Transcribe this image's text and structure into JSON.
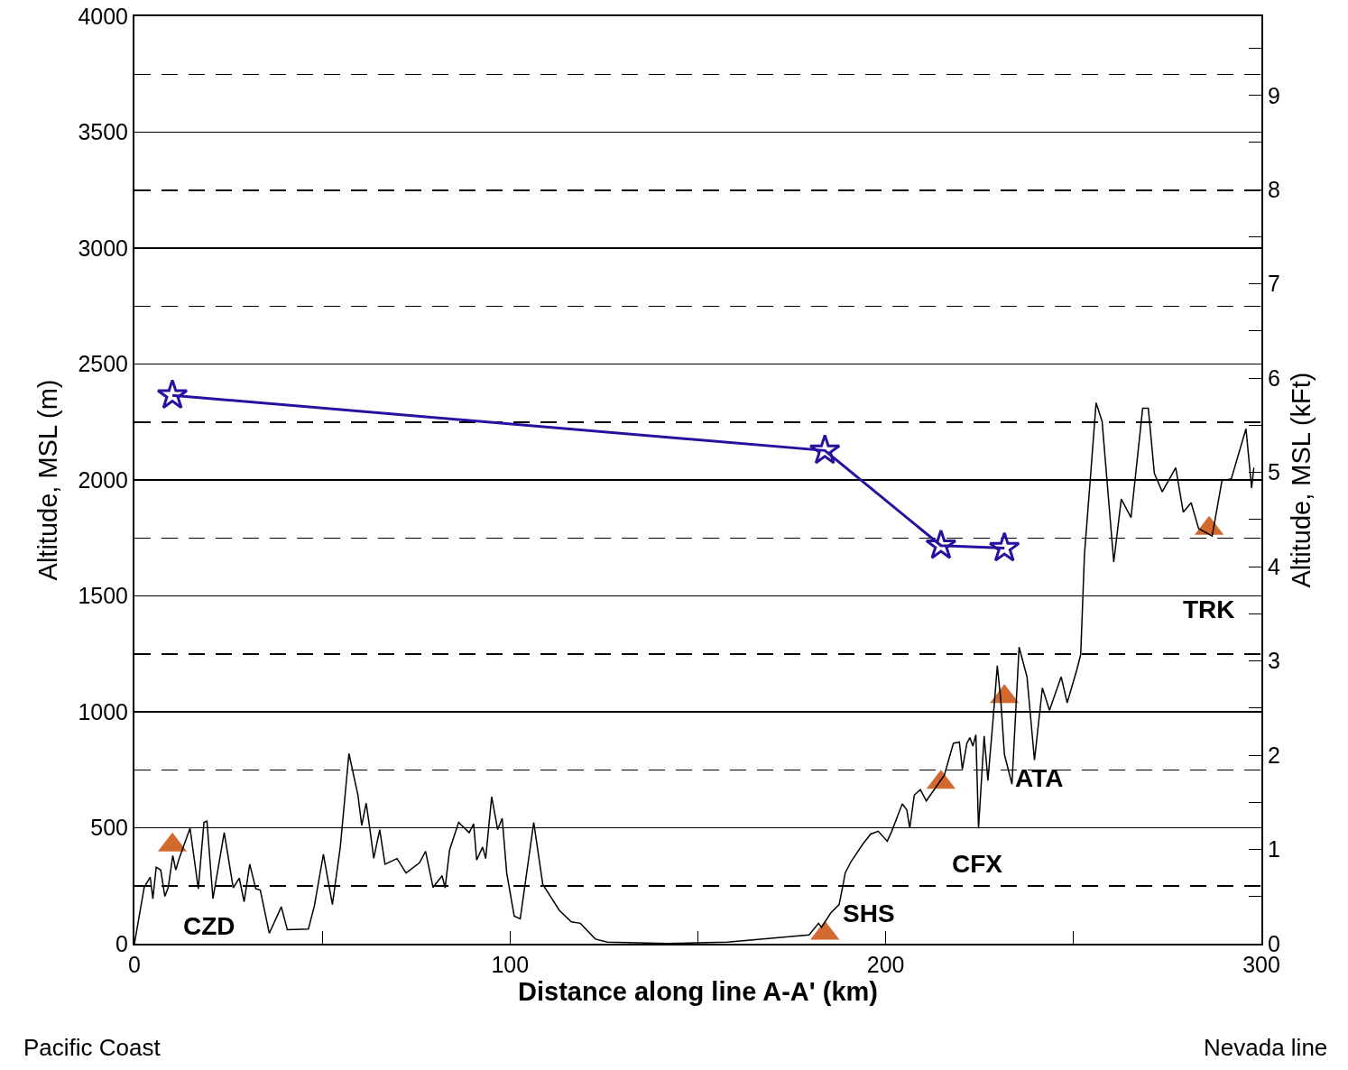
{
  "chart_data": {
    "type": "line",
    "xlabel": "Distance along line A-A' (km)",
    "ylabel": "Altitude, MSL (m)",
    "y2label": "Altitude, MSL (kFt)",
    "xlim": [
      0,
      300
    ],
    "xticks": [
      0,
      {
        "value": 50,
        "label": null
      },
      100,
      {
        "value": 150,
        "label": null
      },
      200,
      {
        "value": 250,
        "label": null
      },
      300
    ],
    "ylim": [
      0,
      4000
    ],
    "yticks": [
      0,
      {
        "value": 250,
        "label": null
      },
      500,
      {
        "value": 750,
        "label": null
      },
      1000,
      {
        "value": 1250,
        "label": null
      },
      1500,
      {
        "value": 1750,
        "label": null
      },
      2000,
      {
        "value": 2250,
        "label": null
      },
      2500,
      {
        "value": 2750,
        "label": null
      },
      3000,
      {
        "value": 3250,
        "label": null
      },
      3500,
      {
        "value": 3750,
        "label": null
      },
      4000
    ],
    "y2lim": [
      0,
      9.84
    ],
    "y2ticks": [
      0,
      {
        "value": 0.5,
        "label": null
      },
      1,
      {
        "value": 1.5,
        "label": null
      },
      2,
      {
        "value": 2.5,
        "label": null
      },
      3,
      {
        "value": 3.5,
        "label": null
      },
      4,
      {
        "value": 4.5,
        "label": null
      },
      5,
      {
        "value": 5.5,
        "label": null
      },
      6,
      {
        "value": 6.5,
        "label": null
      },
      7,
      {
        "value": 7.5,
        "label": null
      },
      8,
      {
        "value": 8.5,
        "label": null
      },
      9,
      {
        "value": 9.5,
        "label": null
      }
    ],
    "grid": "y",
    "series": [
      {
        "color": "#000000",
        "marker": "none",
        "x": [
          0,
          2.6,
          4.2,
          4.9,
          5.8,
          7.0,
          8.1,
          9.0,
          10.2,
          11.0,
          11.9,
          14.8,
          17.0,
          18.5,
          19.3,
          20.9,
          23.9,
          26.3,
          27.9,
          29.2,
          30.7,
          32.3,
          33.5,
          35.9,
          39.1,
          40.7,
          46.3,
          47.9,
          50.3,
          52.7,
          54.8,
          57.1,
          59.5,
          60.5,
          61.7,
          62.7,
          63.7,
          65.3,
          66.7,
          69.9,
          72.3,
          75.9,
          77.5,
          79.5,
          81.9,
          82.7,
          83.9,
          86.3,
          89.1,
          90.3,
          91.1,
          92.7,
          93.5,
          95.1,
          96.7,
          97.9,
          99.1,
          101.1,
          102.7,
          106.3,
          108.7,
          113.1,
          116.3,
          118.7,
          122.7,
          125.9,
          141.9,
          157.9,
          179.6,
          182.1,
          182.9,
          185.3,
          187.6,
          188.8,
          189.2,
          190.8,
          194.0,
          196.0,
          198.0,
          200.4,
          201.6,
          204.4,
          205.6,
          206.4,
          207.6,
          209.2,
          210.8,
          215.6,
          218.0,
          219.6,
          220.4,
          221.6,
          222.4,
          223.2,
          224.0,
          224.7,
          226.2,
          227.2,
          228.7,
          229.7,
          230.6,
          231.6,
          233.6,
          235.5,
          237.6,
          239.6,
          241.7,
          243.6,
          246.7,
          248.3,
          250.9,
          251.9,
          252.9,
          254.5,
          256.0,
          257.6,
          260.7,
          262.7,
          265.3,
          268.4,
          269.9,
          271.5,
          273.6,
          277.2,
          279.2,
          281.3,
          283.3,
          286.9,
          289.5,
          292.0,
          295.9,
          297.4,
          298.0
        ],
        "values": [
          0,
          243,
          287,
          194,
          330,
          318,
          204,
          243,
          380,
          318,
          367,
          498,
          237,
          523,
          529,
          194,
          479,
          241,
          283,
          181,
          343,
          237,
          231,
          45,
          159,
          60,
          63,
          163,
          386,
          169,
          417,
          820,
          641,
          510,
          606,
          492,
          368,
          492,
          343,
          367,
          305,
          349,
          398,
          243,
          293,
          241,
          405,
          523,
          479,
          517,
          361,
          417,
          367,
          634,
          492,
          541,
          305,
          119,
          107,
          523,
          256,
          144,
          94,
          88,
          20,
          7,
          1,
          7,
          38,
          88,
          70,
          131,
          169,
          268,
          305,
          355,
          432,
          473,
          485,
          442,
          485,
          603,
          578,
          498,
          641,
          665,
          616,
          727,
          864,
          870,
          752,
          864,
          889,
          852,
          901,
          497,
          896,
          704,
          992,
          1199,
          1056,
          816,
          688,
          1279,
          1151,
          792,
          1103,
          1007,
          1151,
          1039,
          1183,
          1247,
          1678,
          2013,
          2333,
          2253,
          1646,
          1918,
          1838,
          2309,
          2309,
          2029,
          1949,
          2053,
          1861,
          1902,
          1790,
          1758,
          1997,
          2005,
          2221,
          1965,
          2053
        ]
      },
      {
        "color": "#2a0fa0",
        "marker": "star",
        "x": [
          10.1,
          183.8,
          214.7,
          231.6
        ],
        "values": [
          2365,
          2127,
          1717,
          1706
        ]
      },
      {
        "type": "scatter",
        "color": "#d2692e",
        "marker": "triangle",
        "x": [
          10.1,
          183.8,
          214.7,
          231.6,
          286.1
        ],
        "values": [
          425,
          45,
          696,
          1065,
          1791
        ]
      }
    ],
    "annotations": [
      {
        "text": "CZD",
        "x": 10.1,
        "y": 425
      },
      {
        "text": "SHS",
        "x": 183.8,
        "y": 45
      },
      {
        "text": "CFX",
        "x": 214.7,
        "y": 696
      },
      {
        "text": "ATA",
        "x": 231.6,
        "y": 1065
      },
      {
        "text": "TRK",
        "x": 286.1,
        "y": 1791
      },
      "Pacific Coast",
      "Nevada line"
    ]
  }
}
